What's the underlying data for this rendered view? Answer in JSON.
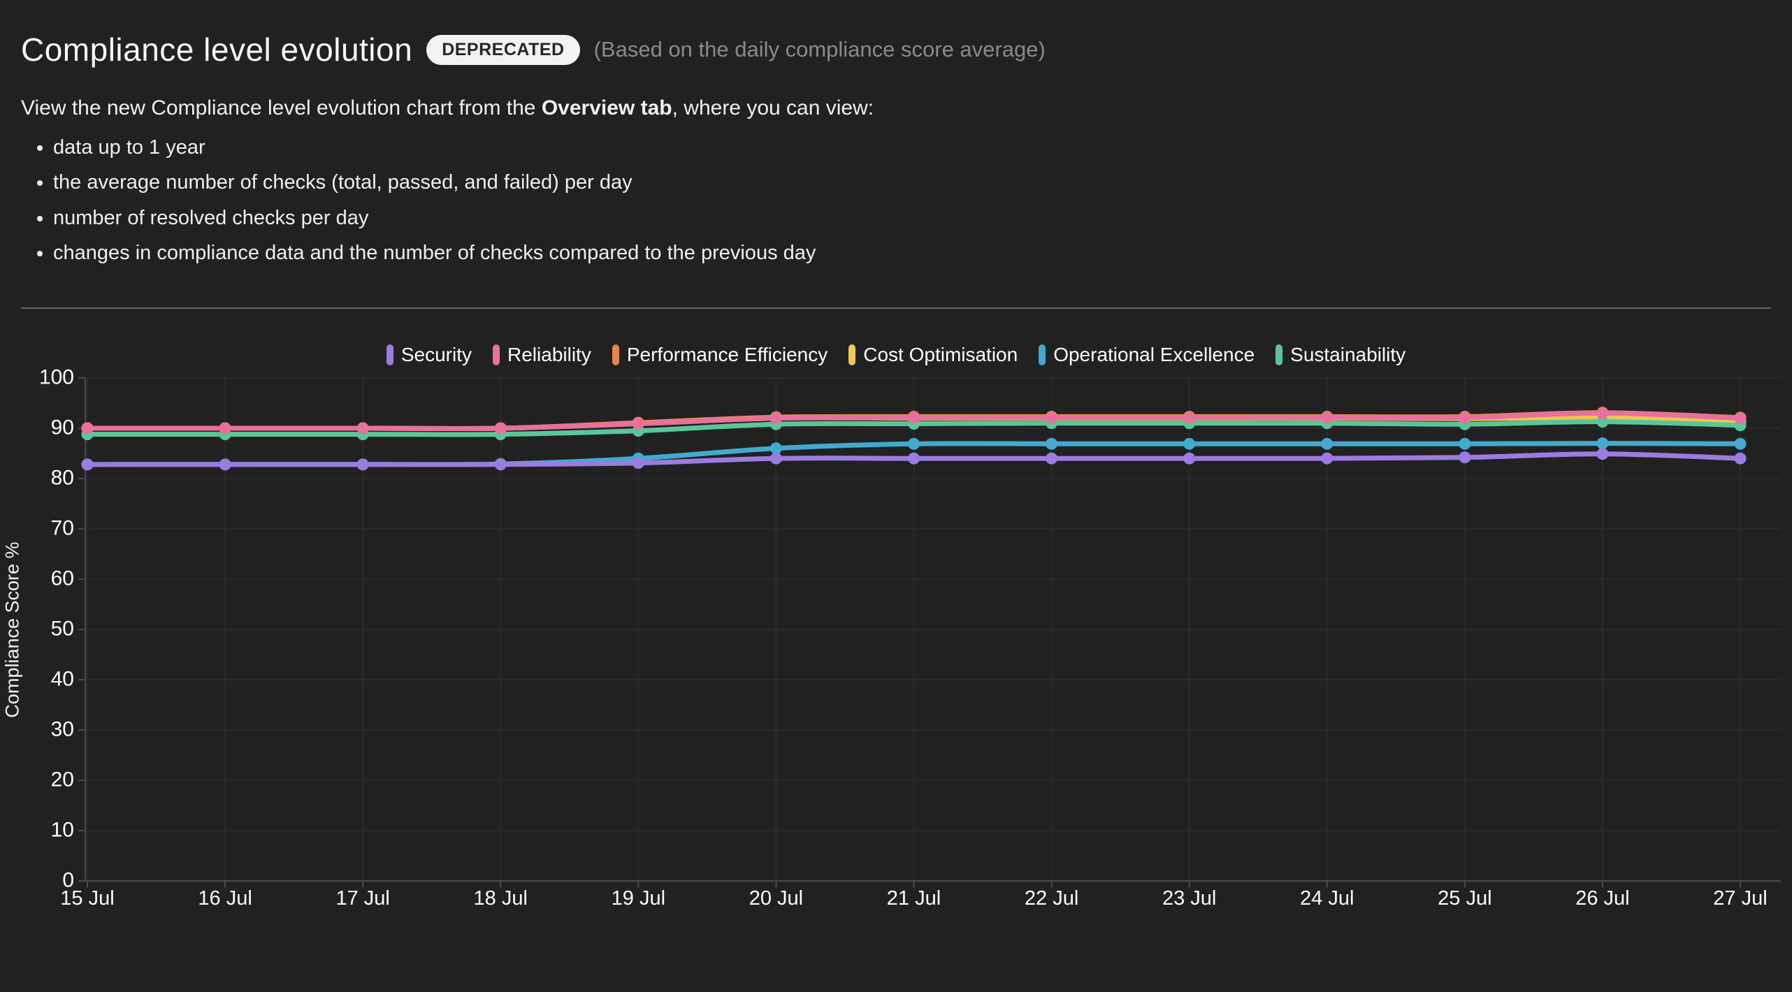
{
  "page": {
    "background": "#212121"
  },
  "header": {
    "title": "Compliance level evolution",
    "badge": "DEPRECATED",
    "subtitle": "(Based on the daily compliance score average)"
  },
  "description": {
    "prefix": "View the new Compliance level evolution chart from the ",
    "bold": "Overview tab",
    "suffix": ", where you can view:",
    "bullets": [
      "data up to 1 year",
      "the average number of checks (total, passed, and failed) per day",
      "number of resolved checks per day",
      "changes in compliance data and the number of checks compared to the previous day"
    ]
  },
  "chart_data": {
    "type": "line",
    "title": "",
    "xlabel": "",
    "ylabel": "Compliance Score %",
    "ylim": [
      0,
      100
    ],
    "y_ticks": [
      0,
      10,
      20,
      30,
      40,
      50,
      60,
      70,
      80,
      90,
      100
    ],
    "grid": true,
    "legend_position": "top",
    "categories": [
      "15 Jul",
      "16 Jul",
      "17 Jul",
      "18 Jul",
      "19 Jul",
      "20 Jul",
      "21 Jul",
      "22 Jul",
      "23 Jul",
      "24 Jul",
      "25 Jul",
      "26 Jul",
      "27 Jul"
    ],
    "series": [
      {
        "name": "Security",
        "color": "#9b7ce0",
        "values": [
          82.8,
          82.8,
          82.8,
          82.8,
          83.1,
          84.0,
          84.0,
          84.0,
          84.0,
          84.0,
          84.2,
          84.9,
          84.0
        ]
      },
      {
        "name": "Reliability",
        "color": "#e8709c",
        "values": [
          90.0,
          90.0,
          90.0,
          90.0,
          90.9,
          92.0,
          92.1,
          92.1,
          92.1,
          92.1,
          92.1,
          93.0,
          92.0
        ]
      },
      {
        "name": "Performance Efficiency",
        "color": "#e8824e",
        "values": [
          90.0,
          90.0,
          90.0,
          90.0,
          91.1,
          92.2,
          92.3,
          92.3,
          92.3,
          92.3,
          92.3,
          93.1,
          92.1
        ]
      },
      {
        "name": "Cost Optimisation",
        "color": "#eec84f",
        "values": [
          90.0,
          90.0,
          90.0,
          90.0,
          90.9,
          92.0,
          92.0,
          92.0,
          92.0,
          92.0,
          91.9,
          92.1,
          91.4
        ]
      },
      {
        "name": "Operational Excellence",
        "color": "#42a9cf",
        "values": [
          82.8,
          82.8,
          82.8,
          82.9,
          84.0,
          86.0,
          86.9,
          86.9,
          86.9,
          86.9,
          86.9,
          87.0,
          86.9
        ]
      },
      {
        "name": "Sustainability",
        "color": "#59c699",
        "values": [
          88.8,
          88.8,
          88.8,
          88.8,
          89.5,
          90.8,
          90.9,
          91.0,
          91.0,
          91.0,
          90.8,
          91.3,
          90.6
        ]
      }
    ],
    "draw_order": [
      "Performance Efficiency",
      "Cost Optimisation",
      "Sustainability",
      "Operational Excellence",
      "Security",
      "Reliability"
    ]
  }
}
